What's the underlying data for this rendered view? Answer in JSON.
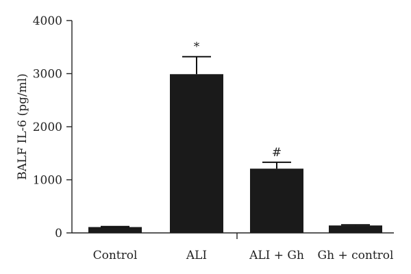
{
  "chart_data": {
    "type": "bar",
    "title": "",
    "xlabel": "",
    "ylabel": "BALF IL-6 (pg/ml)",
    "ylim": [
      0,
      4000
    ],
    "yticks": [
      0,
      1000,
      2000,
      3000,
      4000
    ],
    "categories": [
      "Control",
      "ALI",
      "ALI + Gh",
      "Gh + control"
    ],
    "values": [
      110,
      2990,
      1210,
      140
    ],
    "errors": [
      10,
      330,
      120,
      12
    ],
    "annotations": [
      "",
      "*",
      "#",
      ""
    ],
    "bar_color": "#1a1a1a",
    "grid": false
  }
}
